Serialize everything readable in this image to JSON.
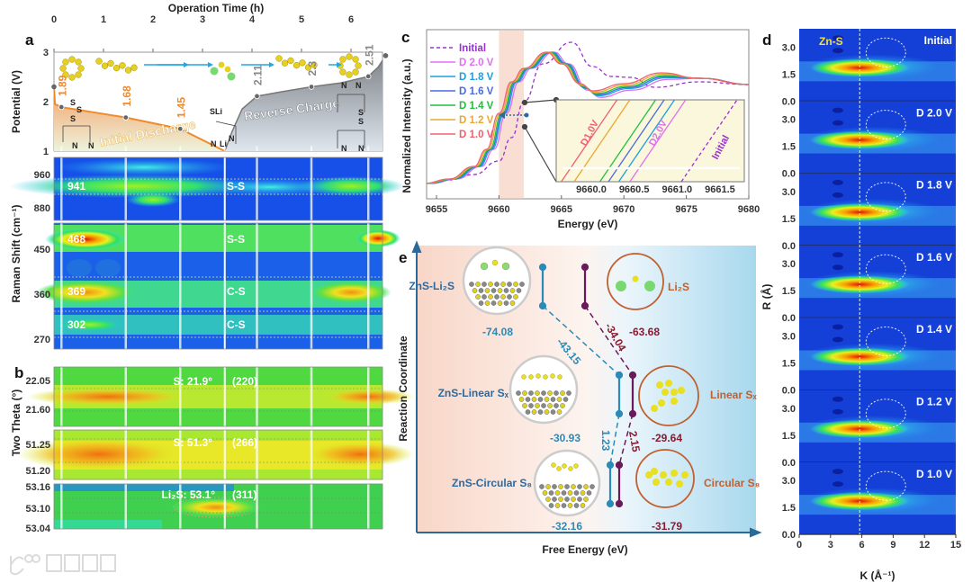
{
  "panel_labels": {
    "a": "a",
    "b": "b",
    "c": "c",
    "d": "d",
    "e": "e"
  },
  "colors": {
    "discharge": "#f08a2a",
    "charge": "#8a8f96",
    "initial": "#9b30d0",
    "d20": "#e070f0",
    "d18": "#1aa0e0",
    "d16": "#4a6ae0",
    "d14": "#20c040",
    "d12": "#e8a830",
    "d10": "#f06070",
    "znS_blue": "#2a7aaa",
    "free_purple": "#7a1c40"
  },
  "chart_data": [
    {
      "id": "a_potential",
      "type": "line",
      "title": "",
      "xlabel": "Operation Time (h)",
      "ylabel": "Potential (V)",
      "xlim": [
        0,
        6.7
      ],
      "ylim": [
        1,
        3
      ],
      "xticks": [
        "0",
        "1",
        "2",
        "3",
        "4",
        "5",
        "6"
      ],
      "yticks": [
        "1",
        "2",
        "3"
      ],
      "series": [
        {
          "name": "Initial Discharge",
          "x": [
            0,
            0.02,
            0.15,
            1.45,
            2.55,
            3.45
          ],
          "y": [
            2.3,
            1.95,
            1.89,
            1.68,
            1.45,
            1.0
          ]
        },
        {
          "name": "Reverse Charge",
          "x": [
            3.45,
            3.6,
            3.8,
            4.1,
            4.6,
            5.2,
            5.8,
            6.35,
            6.55,
            6.7
          ],
          "y": [
            1.0,
            1.4,
            1.85,
            2.11,
            2.2,
            2.3,
            2.38,
            2.51,
            2.7,
            2.93
          ]
        }
      ],
      "point_labels": [
        {
          "t": 0.15,
          "v": "1.89",
          "kind": "discharge"
        },
        {
          "t": 1.45,
          "v": "1.68",
          "kind": "discharge"
        },
        {
          "t": 2.55,
          "v": "1.45",
          "kind": "discharge"
        },
        {
          "t": 4.1,
          "v": "2.11",
          "kind": "charge"
        },
        {
          "t": 5.2,
          "v": "2.3",
          "kind": "charge"
        },
        {
          "t": 6.35,
          "v": "2.51",
          "kind": "charge"
        }
      ],
      "sample_times": [
        0.15,
        1.45,
        2.55,
        3.45,
        4.1,
        5.2,
        6.35
      ],
      "annotations": {
        "discharge": "Initial Discharge",
        "charge": "Reverse Charge"
      },
      "structure_labels": [
        "S",
        "S",
        "S",
        "N",
        "N",
        "SLi",
        "N",
        "Li",
        "N",
        "N",
        "N",
        "S",
        "S",
        "N",
        "N"
      ]
    },
    {
      "id": "a_raman",
      "type": "heatmap",
      "ylabel": "Raman Shift (cm⁻¹)",
      "yticks_upper": [
        "960",
        "880"
      ],
      "yticks_lower": [
        "450",
        "360",
        "270"
      ],
      "peaks": [
        {
          "value": "941",
          "assign": "S-S"
        },
        {
          "value": "468",
          "assign": "S-S"
        },
        {
          "value": "369",
          "assign": "C-S"
        },
        {
          "value": "302",
          "assign": "C-S"
        }
      ]
    },
    {
      "id": "b_xrd",
      "type": "heatmap",
      "ylabel": "Two Theta (°)",
      "panels": [
        {
          "yticks": [
            "22.05",
            "21.60"
          ],
          "peak": "S: 21.9°",
          "plane": "(220)"
        },
        {
          "yticks": [
            "51.25",
            "51.20"
          ],
          "peak": "S: 51.3°",
          "plane": "(266)"
        },
        {
          "yticks": [
            "53.16",
            "53.10",
            "53.04"
          ],
          "peak": "Li₂S: 53.1°",
          "plane": "(311)"
        }
      ]
    },
    {
      "id": "c_xanes",
      "type": "line",
      "xlabel": "Energy (eV)",
      "ylabel": "Normalized Intensity (a.u.)",
      "xlim": [
        9654.2,
        9680
      ],
      "ylim": [
        0,
        1.88
      ],
      "xticks": [
        "9655",
        "9660",
        "9665",
        "9670",
        "9675",
        "9680"
      ],
      "highlight_range": [
        9660,
        9662
      ],
      "series": [
        {
          "name": "Initial",
          "color_key": "initial",
          "dashed": true,
          "x": [
            9654,
            9656,
            9658,
            9660,
            9661,
            9662,
            9663.5,
            9665.8,
            9667.5,
            9669,
            9670.5,
            9672.5,
            9676,
            9680
          ],
          "y": [
            0.17,
            0.21,
            0.27,
            0.42,
            0.68,
            1.08,
            1.5,
            1.74,
            1.47,
            1.36,
            1.35,
            1.24,
            1.3,
            1.27
          ]
        },
        {
          "name": "D 2.0 V",
          "color_key": "d20",
          "dashed": false,
          "shift": 0.6
        },
        {
          "name": "D 1.8 V",
          "color_key": "d18",
          "dashed": false,
          "shift": 0.45
        },
        {
          "name": "D 1.6 V",
          "color_key": "d16",
          "dashed": false,
          "shift": 0.35
        },
        {
          "name": "D 1.4 V",
          "color_key": "d14",
          "dashed": false,
          "shift": 0.25
        },
        {
          "name": "D 1.2 V",
          "color_key": "d12",
          "dashed": false,
          "shift": 0.12
        },
        {
          "name": "D 1.0 V",
          "color_key": "d10",
          "dashed": false,
          "shift": 0
        }
      ],
      "base_discharge": {
        "x": [
          9654,
          9656,
          9658,
          9659,
          9660,
          9661,
          9662,
          9663.8,
          9665,
          9666.5,
          9667.5,
          9670,
          9673,
          9676,
          9680
        ],
        "y": [
          0.17,
          0.22,
          0.36,
          0.55,
          0.95,
          1.3,
          1.45,
          1.63,
          1.5,
          1.28,
          1.2,
          1.28,
          1.4,
          1.34,
          1.27
        ]
      },
      "inset": {
        "xticks": [
          "9660.0",
          "9660.5",
          "9661.0",
          "9661.5"
        ],
        "xlim": [
          9659.6,
          9661.8
        ],
        "crossings": [
          {
            "name": "Initial",
            "color_key": "initial",
            "energy": 9661.05
          },
          {
            "name": "D 2.0 V",
            "color_key": "d20",
            "energy": 9660.45
          },
          {
            "name": "D 1.8 V",
            "color_key": "d18",
            "energy": 9660.32
          },
          {
            "name": "D 1.6 V",
            "color_key": "d16",
            "energy": 9660.2
          },
          {
            "name": "D 1.4 V",
            "color_key": "d14",
            "energy": 9660.1
          },
          {
            "name": "D 1.2 V",
            "color_key": "d12",
            "energy": 9659.8
          },
          {
            "name": "D 1.0 V",
            "color_key": "d10",
            "energy": 9659.65
          }
        ],
        "labels": {
          "d10": "D1.0V",
          "d20": "D2.0V",
          "initial": "Initial"
        }
      }
    },
    {
      "id": "d_wavelet",
      "type": "heatmap",
      "xlabel": "K (Å⁻¹)",
      "ylabel": "R (Å)",
      "xticks": [
        "0",
        "3",
        "6",
        "9",
        "12",
        "15"
      ],
      "yticks": [
        "0.0",
        "1.5",
        "3.0"
      ],
      "marker": "Zn-S",
      "marker_k": 5.8,
      "panels": [
        "Initial",
        "D 2.0 V",
        "D 1.8 V",
        "D 1.6 V",
        "D 1.4 V",
        "D 1.2 V",
        "D 1.0 V"
      ]
    },
    {
      "id": "e_energy",
      "type": "diagram",
      "xlabel": "Free Energy (eV)",
      "ylabel": "Reaction Coordinate",
      "states": [
        {
          "znS_name": "ZnS-Li₂S",
          "znS_energy": "-74.08",
          "free_name": "Li₂S",
          "free_energy": "-63.68"
        },
        {
          "znS_name": "ZnS-Linear Sₓ",
          "znS_energy": "-30.93",
          "free_name": "Linear Sₓ",
          "free_energy": "-29.64"
        },
        {
          "znS_name": "ZnS-Circular S₈",
          "znS_energy": "-32.16",
          "free_name": "Circular S₈",
          "free_energy": "-31.79"
        }
      ],
      "differences": {
        "znS_1": "-43.15",
        "free_1": "-34.04",
        "znS_2": "1.23",
        "free_2": "2.15"
      }
    }
  ],
  "watermark": "大数跨境"
}
